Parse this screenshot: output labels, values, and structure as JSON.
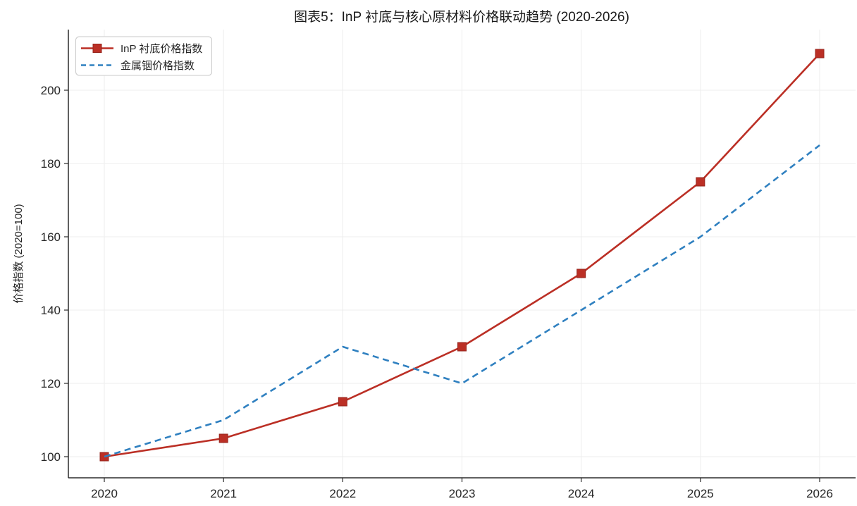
{
  "chart_data": {
    "type": "line",
    "title": "图表5：InP 衬底与核心原材料价格联动趋势 (2020-2026)",
    "xlabel": "",
    "ylabel": "价格指数 (2020=100)",
    "categories": [
      "2020",
      "2021",
      "2022",
      "2023",
      "2024",
      "2025",
      "2026"
    ],
    "series": [
      {
        "name": "InP 衬底价格指数",
        "values": [
          100,
          105,
          115,
          130,
          150,
          175,
          210
        ],
        "color": "#bb2f25",
        "marker_edge_color": "#96251d",
        "line_style": "solid",
        "marker": "square"
      },
      {
        "name": "金属铟价格指数",
        "values": [
          100,
          110,
          130,
          120,
          140,
          160,
          185
        ],
        "color": "#2f80c0",
        "line_style": "dashed",
        "marker": "none"
      }
    ],
    "yticks": [
      100,
      120,
      140,
      160,
      180,
      200
    ],
    "ylim": [
      94.4,
      216.5
    ],
    "x_range": [
      "2020",
      "2026"
    ],
    "grid": true,
    "grid_color": "#ededed",
    "spine_color": "#2b2b2b",
    "legend_position": "upper-left",
    "legend_border_color": "#c9c9c9",
    "background_color": "#ffffff"
  }
}
